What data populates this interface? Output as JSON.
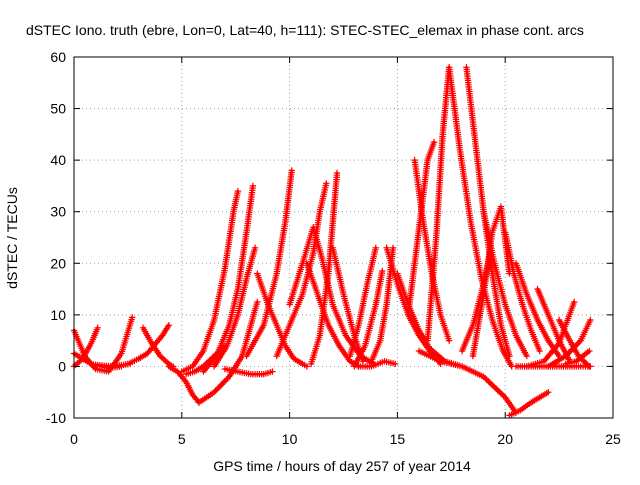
{
  "chart_data": {
    "type": "scatter",
    "title": "dSTEC Iono. truth (ebre, Lon=0, Lat=40, h=111): STEC-STEC_elemax in phase cont. arcs",
    "xlabel": "GPS time / hours of day 257 of year 2014",
    "ylabel": "dSTEC  / TECUs",
    "xlim": [
      0,
      25
    ],
    "ylim": [
      -10,
      60
    ],
    "xticks": [
      "0",
      "5",
      "10",
      "15",
      "20",
      "25"
    ],
    "yticks": [
      "-10",
      "0",
      "10",
      "20",
      "30",
      "40",
      "50",
      "60"
    ],
    "grid": true,
    "marker": "+",
    "color": "#ff0000",
    "arcs": [
      {
        "x": [
          0.0,
          0.4,
          0.8,
          1.1
        ],
        "y": [
          0.0,
          1.5,
          4.5,
          7.5
        ]
      },
      {
        "x": [
          0.0,
          0.5,
          1.0,
          1.6,
          2.2,
          2.7
        ],
        "y": [
          7.0,
          2.0,
          -0.5,
          -1.0,
          2.5,
          9.5
        ]
      },
      {
        "x": [
          0.0,
          0.8,
          1.6,
          2.2
        ],
        "y": [
          2.5,
          0.5,
          -0.3,
          0.0
        ]
      },
      {
        "x": [
          1.0,
          1.8,
          2.6
        ],
        "y": [
          0.3,
          0.0,
          0.5
        ]
      },
      {
        "x": [
          2.5,
          3.0,
          3.4,
          3.7,
          4.1,
          4.4
        ],
        "y": [
          0.5,
          1.5,
          2.5,
          4.0,
          6.0,
          8.0
        ]
      },
      {
        "x": [
          3.2,
          3.6,
          4.0,
          4.4,
          4.6
        ],
        "y": [
          7.5,
          4.5,
          2.0,
          0.5,
          0.0
        ]
      },
      {
        "x": [
          4.4,
          4.8,
          5.2,
          5.5,
          5.8
        ],
        "y": [
          0.0,
          -1.0,
          -3.0,
          -5.5,
          -7.0
        ]
      },
      {
        "x": [
          5.0,
          5.5,
          6.0,
          6.5,
          7.0,
          7.4,
          7.6
        ],
        "y": [
          -1.0,
          0.0,
          3.0,
          9.0,
          19.0,
          30.0,
          34.0
        ]
      },
      {
        "x": [
          5.2,
          5.6,
          6.0,
          6.5,
          7.0
        ],
        "y": [
          -1.5,
          -1.0,
          0.0,
          2.0,
          4.0
        ]
      },
      {
        "x": [
          5.8,
          6.5,
          7.2,
          7.8,
          8.2,
          8.5
        ],
        "y": [
          -7.0,
          -5.0,
          -2.0,
          2.0,
          8.0,
          12.5
        ]
      },
      {
        "x": [
          6.0,
          6.6,
          7.2,
          7.6,
          8.0,
          8.3
        ],
        "y": [
          -1.0,
          2.0,
          8.0,
          15.0,
          26.0,
          35.0
        ]
      },
      {
        "x": [
          6.5,
          7.1,
          7.6,
          8.0,
          8.4
        ],
        "y": [
          0.0,
          4.0,
          10.0,
          17.0,
          23.0
        ]
      },
      {
        "x": [
          7.0,
          7.6,
          8.2,
          8.8,
          9.2
        ],
        "y": [
          -0.5,
          -1.0,
          -1.5,
          -1.5,
          -1.0
        ]
      },
      {
        "x": [
          8.5,
          9.0,
          9.4,
          9.8,
          10.2,
          10.6,
          10.8
        ],
        "y": [
          18.0,
          12.0,
          8.0,
          4.0,
          1.5,
          0.5,
          0.0
        ]
      },
      {
        "x": [
          8.0,
          8.8,
          9.4,
          9.8,
          10.1
        ],
        "y": [
          2.0,
          8.0,
          18.0,
          28.0,
          38.0
        ]
      },
      {
        "x": [
          9.4,
          10.0,
          10.6,
          11.1,
          11.4,
          11.7
        ],
        "y": [
          2.0,
          8.0,
          14.0,
          22.0,
          30.0,
          35.5
        ]
      },
      {
        "x": [
          10.0,
          10.6,
          11.1,
          11.5,
          12.0,
          12.6,
          13.3,
          13.9
        ],
        "y": [
          12.0,
          20.0,
          27.0,
          21.0,
          12.0,
          6.0,
          2.0,
          0.5
        ]
      },
      {
        "x": [
          10.8,
          11.3,
          11.8,
          12.3,
          12.8,
          13.2
        ],
        "y": [
          20.0,
          14.0,
          8.0,
          4.0,
          1.0,
          0.0
        ]
      },
      {
        "x": [
          11.0,
          11.4,
          11.8,
          12.2
        ],
        "y": [
          0.5,
          6.0,
          18.0,
          37.5
        ]
      },
      {
        "x": [
          12.0,
          12.5,
          13.0,
          13.4
        ],
        "y": [
          23.0,
          14.0,
          6.0,
          1.0
        ]
      },
      {
        "x": [
          12.8,
          13.2,
          13.6,
          14.0
        ],
        "y": [
          2.0,
          8.0,
          16.0,
          23.0
        ]
      },
      {
        "x": [
          13.0,
          13.5,
          14.0,
          14.3
        ],
        "y": [
          0.0,
          4.0,
          12.0,
          18.5
        ]
      },
      {
        "x": [
          13.2,
          13.8,
          14.4,
          14.9
        ],
        "y": [
          0.0,
          0.0,
          1.0,
          0.5
        ]
      },
      {
        "x": [
          13.8,
          14.2,
          14.5,
          14.8
        ],
        "y": [
          1.0,
          5.0,
          12.0,
          23.0
        ]
      },
      {
        "x": [
          14.5,
          15.0,
          15.5,
          16.0,
          16.5,
          17.0
        ],
        "y": [
          23.0,
          16.0,
          10.0,
          6.0,
          3.0,
          0.5
        ]
      },
      {
        "x": [
          15.0,
          15.5,
          16.0,
          16.5,
          17.2,
          18.0
        ],
        "y": [
          18.0,
          12.0,
          7.0,
          3.5,
          1.0,
          0.0
        ]
      },
      {
        "x": [
          15.5,
          15.8,
          16.1,
          16.4,
          16.7
        ],
        "y": [
          10.0,
          20.0,
          30.0,
          40.0,
          43.5
        ]
      },
      {
        "x": [
          15.8,
          16.2,
          16.6,
          17.0,
          17.4
        ],
        "y": [
          40.0,
          28.0,
          18.0,
          10.0,
          5.0
        ]
      },
      {
        "x": [
          16.4,
          16.8,
          17.1,
          17.4
        ],
        "y": [
          5.0,
          25.0,
          45.0,
          58.0
        ]
      },
      {
        "x": [
          17.4,
          17.9,
          18.4,
          18.9,
          19.4,
          19.9,
          20.3
        ],
        "y": [
          58.0,
          42.0,
          28.0,
          17.0,
          9.0,
          3.0,
          0.0
        ]
      },
      {
        "x": [
          18.2,
          18.6,
          19.0,
          19.4,
          19.8,
          20.2
        ],
        "y": [
          58.0,
          44.0,
          30.0,
          18.0,
          8.0,
          2.0
        ]
      },
      {
        "x": [
          16.0,
          17.0,
          18.0,
          19.0,
          20.0,
          20.5
        ],
        "y": [
          3.0,
          1.0,
          0.0,
          -2.0,
          -6.0,
          -9.0
        ]
      },
      {
        "x": [
          18.5,
          19.0,
          19.4,
          19.8,
          20.2
        ],
        "y": [
          2.0,
          14.0,
          26.0,
          31.0,
          18.0
        ]
      },
      {
        "x": [
          18.0,
          18.5,
          19.0,
          19.3
        ],
        "y": [
          3.0,
          8.0,
          16.0,
          22.0
        ]
      },
      {
        "x": [
          19.0,
          19.5,
          20.0,
          20.5,
          21.0
        ],
        "y": [
          30.0,
          20.0,
          12.0,
          6.0,
          2.0
        ]
      },
      {
        "x": [
          20.0,
          20.4,
          20.8,
          21.2,
          21.6
        ],
        "y": [
          26.0,
          18.0,
          12.0,
          7.0,
          3.0
        ]
      },
      {
        "x": [
          20.2,
          20.7,
          21.2,
          21.6,
          22.0
        ],
        "y": [
          -9.5,
          -8.5,
          -7.0,
          -6.0,
          -5.0
        ]
      },
      {
        "x": [
          20.5,
          21.0,
          21.5,
          22.0,
          22.5
        ],
        "y": [
          20.0,
          14.0,
          9.0,
          5.0,
          2.0
        ]
      },
      {
        "x": [
          21.5,
          22.0,
          22.5,
          23.0
        ],
        "y": [
          15.0,
          10.0,
          5.0,
          1.0
        ]
      },
      {
        "x": [
          21.0,
          21.8,
          22.5,
          23.2
        ],
        "y": [
          0.0,
          1.0,
          4.5,
          12.5
        ]
      },
      {
        "x": [
          22.5,
          23.0,
          23.4,
          23.9
        ],
        "y": [
          9.0,
          5.0,
          2.0,
          0.0
        ]
      },
      {
        "x": [
          22.0,
          22.8,
          23.5,
          23.95
        ],
        "y": [
          0.0,
          2.0,
          5.0,
          9.0
        ]
      },
      {
        "x": [
          22.8,
          23.3,
          23.9
        ],
        "y": [
          0.5,
          1.0,
          3.0
        ]
      },
      {
        "x": [
          20.5,
          21.5,
          22.5,
          23.5,
          23.95
        ],
        "y": [
          0.0,
          0.0,
          0.0,
          0.0,
          0.0
        ]
      }
    ]
  }
}
